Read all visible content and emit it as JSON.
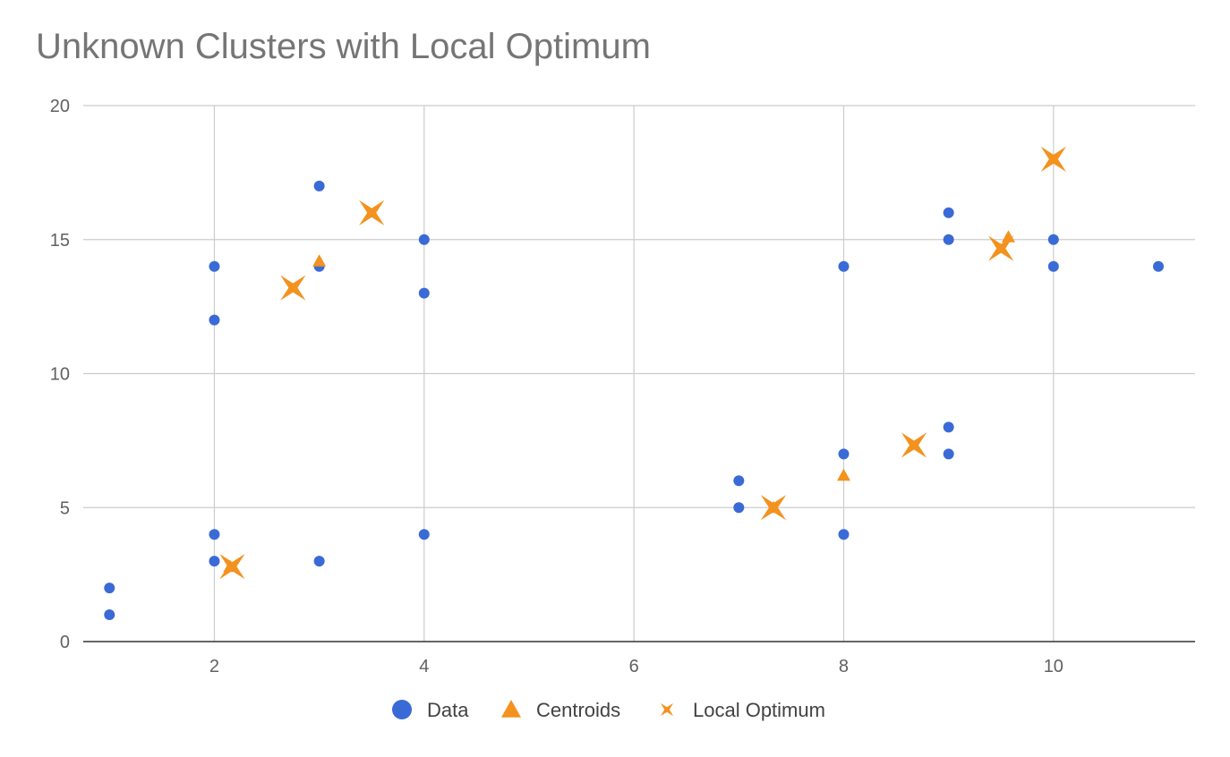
{
  "chart_data": {
    "type": "scatter",
    "title": "Unknown Clusters with Local Optimum",
    "xlabel": "",
    "ylabel": "",
    "xlim": [
      0.75,
      11.35
    ],
    "ylim": [
      0,
      20
    ],
    "x_ticks": [
      2,
      4,
      6,
      8,
      10
    ],
    "y_ticks": [
      0,
      5,
      10,
      15,
      20
    ],
    "grid": true,
    "legend_position": "bottom",
    "series": [
      {
        "name": "Data",
        "marker": "circle",
        "color": "#3a6ad6",
        "points": [
          [
            1,
            2
          ],
          [
            1,
            1
          ],
          [
            2,
            14
          ],
          [
            2,
            12
          ],
          [
            2,
            4
          ],
          [
            2,
            3
          ],
          [
            3,
            17
          ],
          [
            3,
            14
          ],
          [
            3,
            3
          ],
          [
            4,
            15
          ],
          [
            4,
            13
          ],
          [
            4,
            4
          ],
          [
            7,
            6
          ],
          [
            7,
            5
          ],
          [
            8,
            14
          ],
          [
            8,
            7
          ],
          [
            8,
            4
          ],
          [
            9,
            16
          ],
          [
            9,
            15
          ],
          [
            9,
            8
          ],
          [
            9,
            7
          ],
          [
            10,
            15
          ],
          [
            10,
            14
          ],
          [
            11,
            14
          ]
        ]
      },
      {
        "name": "Centroids",
        "marker": "triangle",
        "color": "#f3921e",
        "points": [
          [
            3,
            14.2
          ],
          [
            8,
            6.2
          ],
          [
            9.57,
            15.1
          ],
          [
            2.15,
            2.8
          ],
          [
            7.33,
            5
          ]
        ]
      },
      {
        "name": "Local Optimum",
        "marker": "star",
        "color": "#f3921e",
        "points": [
          [
            2.17,
            2.8
          ],
          [
            2.75,
            13.2
          ],
          [
            3.5,
            16
          ],
          [
            7.33,
            5
          ],
          [
            8.67,
            7.33
          ],
          [
            9.5,
            14.67
          ],
          [
            10,
            18
          ]
        ]
      }
    ]
  }
}
